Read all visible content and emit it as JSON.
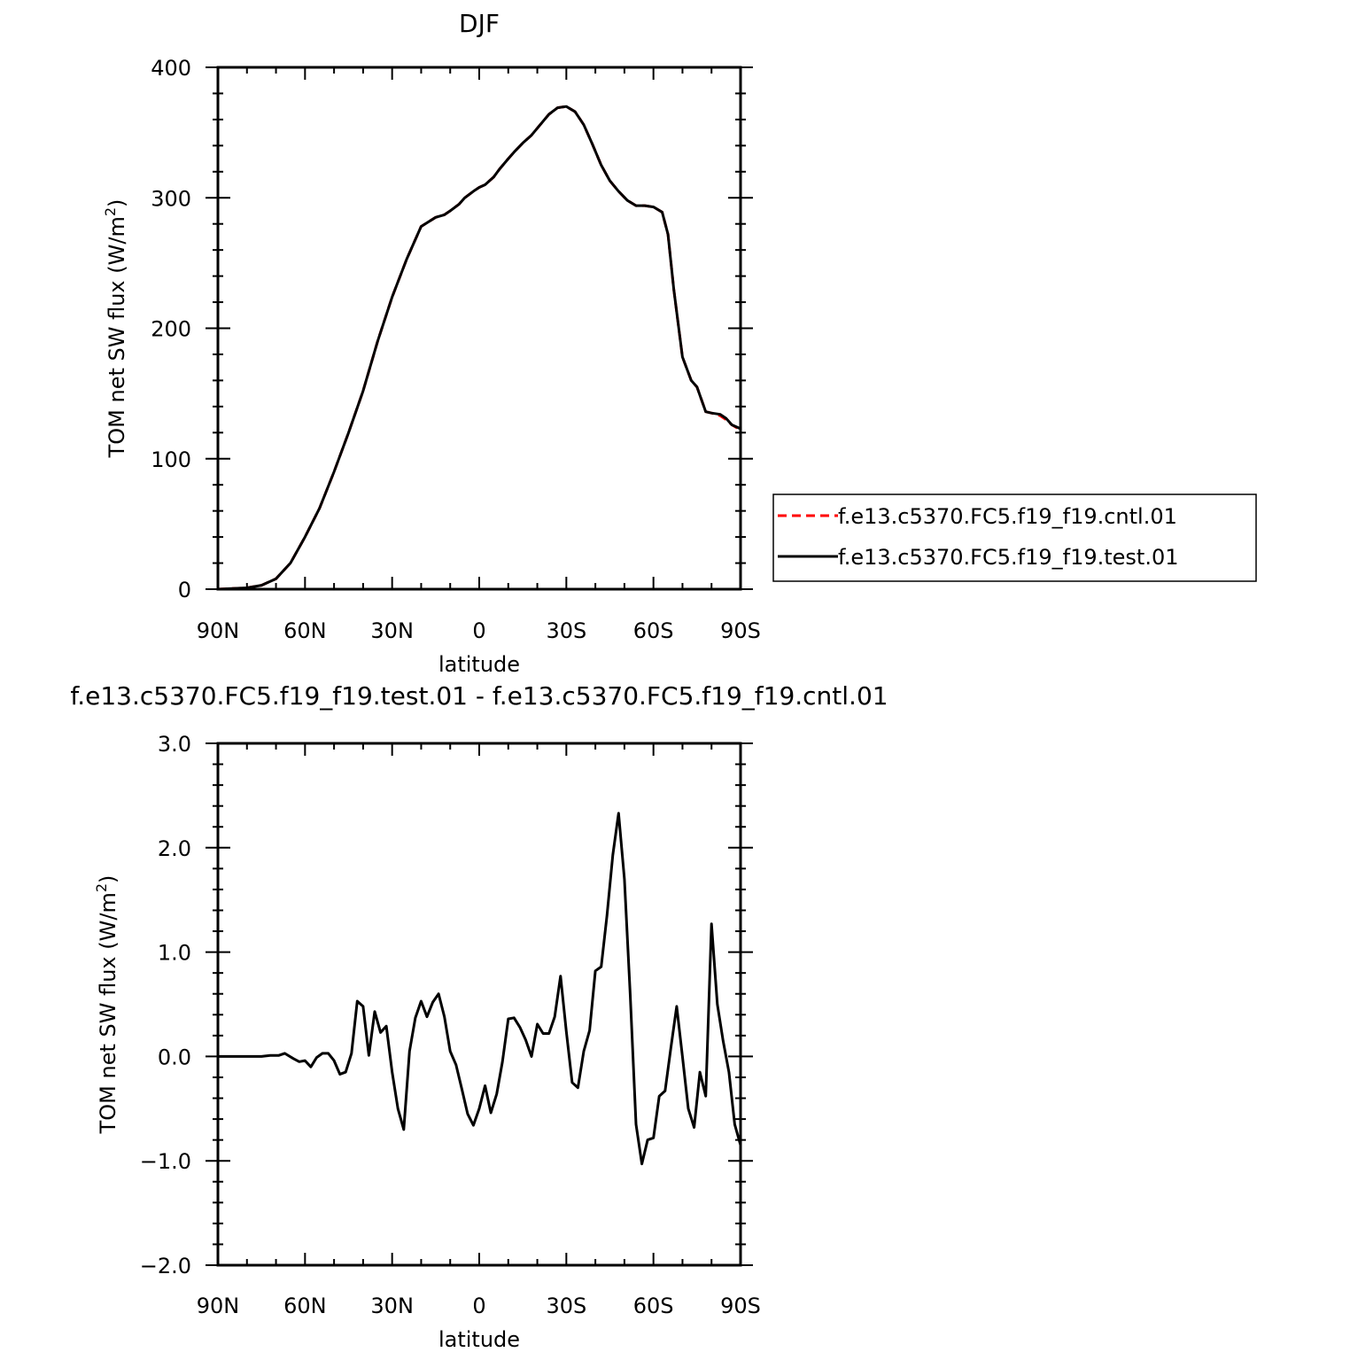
{
  "chart_data": [
    {
      "type": "line",
      "title": "DJF",
      "xlabel": "latitude",
      "ylabel": "TOM net SW flux (W/m²)",
      "ylabel_parts": {
        "main": "TOM net SW flux (W/m",
        "sup": "2",
        "end": ")"
      },
      "xlim": [
        90,
        -90
      ],
      "ylim": [
        0,
        400
      ],
      "x_ticks": [
        90,
        60,
        30,
        0,
        -30,
        -60,
        -90
      ],
      "x_tick_labels": [
        "90N",
        "60N",
        "30N",
        "0",
        "30S",
        "60S",
        "90S"
      ],
      "y_ticks": [
        0,
        100,
        200,
        300,
        400
      ],
      "y_tick_labels": [
        "0",
        "100",
        "200",
        "300",
        "400"
      ],
      "legend_position": "right",
      "series": [
        {
          "name": "f.e13.c5370.FC5.f19_f19.cntl.01",
          "color": "#ff0000",
          "dash": "dashed",
          "x": [
            90,
            80,
            75,
            70,
            65,
            60,
            55,
            50,
            45,
            40,
            35,
            30,
            25,
            20,
            15,
            12,
            10,
            7,
            5,
            2,
            0,
            -2,
            -5,
            -7,
            -10,
            -12,
            -15,
            -18,
            -21,
            -24,
            -27,
            -30,
            -33,
            -36,
            -39,
            -42,
            -45,
            -48,
            -51,
            -54,
            -57,
            -60,
            -63,
            -65,
            -67,
            -70,
            -73,
            -75,
            -78,
            -80,
            -83,
            -85,
            -87,
            -90
          ],
          "values": [
            0,
            1,
            3,
            8,
            20,
            40,
            62,
            90,
            120,
            152,
            190,
            224,
            253,
            278,
            285,
            287,
            290,
            295,
            300,
            305,
            308,
            310,
            316,
            322,
            330,
            335,
            342,
            348,
            356,
            364,
            369,
            370,
            366,
            356,
            341,
            325,
            313,
            305,
            298,
            294,
            294,
            293,
            289,
            272,
            230,
            178,
            160,
            155,
            136,
            135,
            133,
            130,
            126,
            122
          ]
        },
        {
          "name": "f.e13.c5370.FC5.f19_f19.test.01",
          "color": "#000000",
          "dash": "solid",
          "x": [
            90,
            80,
            75,
            70,
            65,
            60,
            55,
            50,
            45,
            40,
            35,
            30,
            25,
            20,
            15,
            12,
            10,
            7,
            5,
            2,
            0,
            -2,
            -5,
            -7,
            -10,
            -12,
            -15,
            -18,
            -21,
            -24,
            -27,
            -30,
            -33,
            -36,
            -39,
            -42,
            -45,
            -48,
            -51,
            -54,
            -57,
            -60,
            -63,
            -65,
            -67,
            -70,
            -73,
            -75,
            -78,
            -80,
            -83,
            -85,
            -87,
            -90
          ],
          "values": [
            0,
            1,
            3,
            8,
            20,
            40,
            62,
            90,
            120,
            152,
            190,
            224,
            253,
            278,
            285,
            287,
            290,
            295,
            300,
            305,
            308,
            310,
            316,
            322,
            330,
            335,
            342,
            348,
            356,
            364,
            369,
            370,
            366,
            356,
            341,
            325,
            313,
            305,
            298,
            294,
            294,
            293,
            289,
            272,
            230,
            178,
            160,
            155,
            136,
            135,
            134,
            131,
            126,
            123
          ]
        }
      ]
    },
    {
      "type": "line",
      "title": "f.e13.c5370.FC5.f19_f19.test.01 - f.e13.c5370.FC5.f19_f19.cntl.01",
      "xlabel": "latitude",
      "ylabel": "TOM net SW flux (W/m²)",
      "ylabel_parts": {
        "main": "TOM net SW flux (W/m",
        "sup": "2",
        "end": ")"
      },
      "xlim": [
        90,
        -90
      ],
      "ylim": [
        -2.0,
        3.0
      ],
      "x_ticks": [
        90,
        60,
        30,
        0,
        -30,
        -60,
        -90
      ],
      "x_tick_labels": [
        "90N",
        "60N",
        "30N",
        "0",
        "30S",
        "60S",
        "90S"
      ],
      "y_ticks": [
        -2,
        -1,
        0,
        1,
        2,
        3
      ],
      "y_tick_labels": [
        "−2.0",
        "−1.0",
        "0.0",
        "1.0",
        "2.0",
        "3.0"
      ],
      "series": [
        {
          "color": "#000000",
          "dash": "solid",
          "x": [
            90,
            85,
            80,
            75,
            72,
            69,
            67,
            64,
            62,
            60,
            58,
            56,
            54,
            52,
            50,
            48,
            46,
            44,
            42,
            40,
            38,
            36,
            34,
            32,
            30,
            28,
            26,
            24,
            22,
            20,
            18,
            16,
            14,
            12,
            10,
            8,
            6,
            4,
            2,
            0,
            -2,
            -4,
            -6,
            -8,
            -10,
            -12,
            -14,
            -16,
            -18,
            -20,
            -22,
            -24,
            -26,
            -28,
            -30,
            -32,
            -34,
            -36,
            -38,
            -40,
            -42,
            -44,
            -46,
            -48,
            -50,
            -52,
            -54,
            -56,
            -58,
            -60,
            -62,
            -64,
            -66,
            -68,
            -70,
            -72,
            -74,
            -76,
            -78,
            -80,
            -82,
            -84,
            -86,
            -88,
            -90
          ],
          "values": [
            0,
            0,
            0,
            0,
            0.01,
            0.01,
            0.03,
            -0.02,
            -0.05,
            -0.04,
            -0.1,
            -0.01,
            0.03,
            0.03,
            -0.04,
            -0.17,
            -0.15,
            0.03,
            0.53,
            0.48,
            0.01,
            0.43,
            0.23,
            0.29,
            -0.15,
            -0.5,
            -0.7,
            0.05,
            0.37,
            0.53,
            0.38,
            0.52,
            0.6,
            0.38,
            0.05,
            -0.08,
            -0.31,
            -0.55,
            -0.66,
            -0.5,
            -0.28,
            -0.54,
            -0.36,
            -0.05,
            0.36,
            0.37,
            0.28,
            0.16,
            0.0,
            0.31,
            0.22,
            0.22,
            0.38,
            0.77,
            0.24,
            -0.25,
            -0.3,
            0.05,
            0.25,
            0.82,
            0.86,
            1.35,
            1.93,
            2.33,
            1.7,
            0.6,
            -0.65,
            -1.03,
            -0.8,
            -0.78,
            -0.38,
            -0.33,
            0.08,
            0.48,
            0.0,
            -0.5,
            -0.68,
            -0.15,
            -0.38,
            1.27,
            0.5,
            0.15,
            -0.15,
            -0.65,
            -0.85
          ]
        }
      ]
    }
  ]
}
